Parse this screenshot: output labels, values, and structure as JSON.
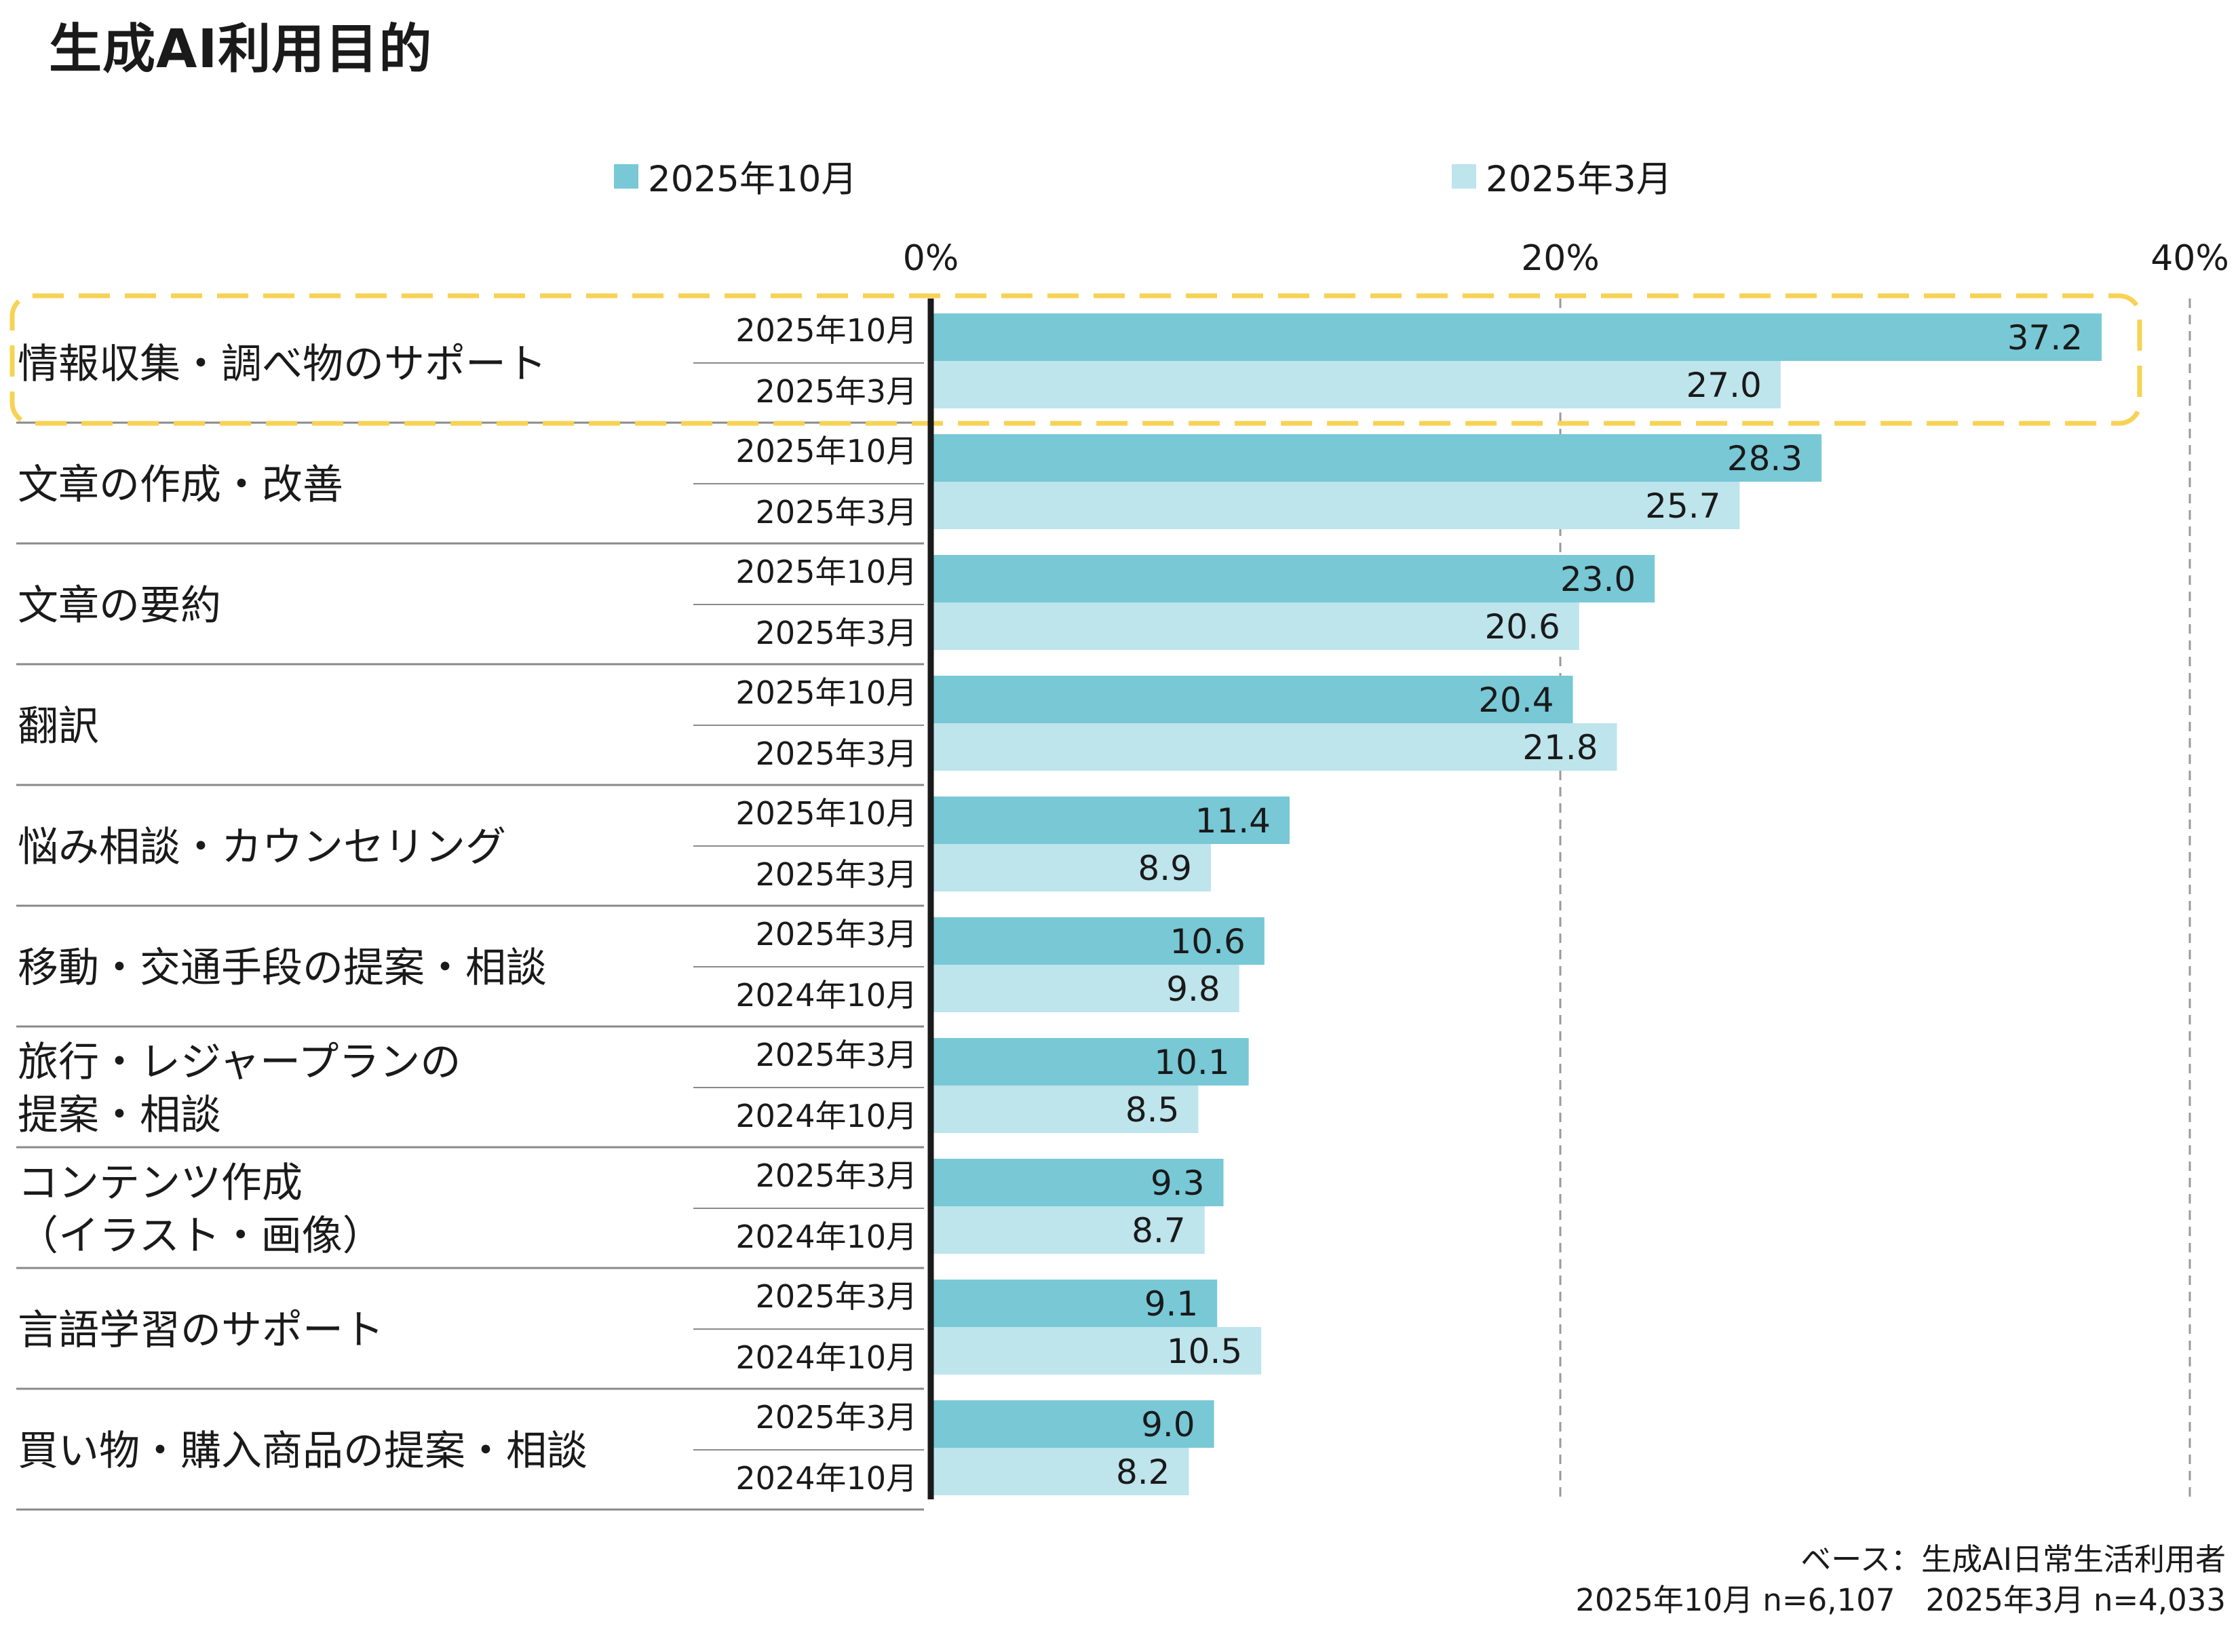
{
  "title": "生成AI利用目的",
  "legend": [
    {
      "label": "2025年10月",
      "color": "#78c8d6"
    },
    {
      "label": "2025年3月",
      "color": "#bee4ec"
    }
  ],
  "chart_data": {
    "type": "bar",
    "orientation": "horizontal",
    "title": "生成AI利用目的",
    "xlim": [
      0,
      40
    ],
    "x_ticks": [
      "0%",
      "20%",
      "40%"
    ],
    "grid": "dashed vertical at 20% and 40%",
    "highlight_category": "情報収集・調べ物のサポート",
    "categories": [
      "情報収集・調べ物のサポート",
      "文章の作成・改善",
      "文章の要約",
      "翻訳",
      "悩み相談・カウンセリング",
      "移動・交通手段の提案・相談",
      "旅行・レジャープランの\n提案・相談",
      "コンテンツ作成\n（イラスト・画像）",
      "言語学習のサポート",
      "買い物・購入商品の提案・相談"
    ],
    "series": [
      {
        "name": "2025年10月",
        "color": "#78c8d6",
        "row_labels": [
          "2025年10月",
          "2025年10月",
          "2025年10月",
          "2025年10月",
          "2025年10月",
          "2025年3月",
          "2025年3月",
          "2025年3月",
          "2025年3月",
          "2025年3月"
        ],
        "values": [
          37.2,
          28.3,
          23.0,
          20.4,
          11.4,
          10.6,
          10.1,
          9.3,
          9.1,
          9.0
        ],
        "value_labels": [
          "37.2",
          "28.3",
          "23.0",
          "20.4",
          "11.4",
          "10.6",
          "10.1",
          "9.3",
          "9.1",
          "9.0"
        ]
      },
      {
        "name": "2025年3月",
        "color": "#bee4ec",
        "row_labels": [
          "2025年3月",
          "2025年3月",
          "2025年3月",
          "2025年3月",
          "2025年3月",
          "2024年10月",
          "2024年10月",
          "2024年10月",
          "2024年10月",
          "2024年10月"
        ],
        "values": [
          27.0,
          25.7,
          20.6,
          21.8,
          8.9,
          9.8,
          8.5,
          8.7,
          10.5,
          8.2
        ],
        "value_labels": [
          "27.0",
          "25.7",
          "20.6",
          "21.8",
          "8.9",
          "9.8",
          "8.5",
          "8.7",
          "10.5",
          "8.2"
        ]
      }
    ]
  },
  "footnote": {
    "line1": "ベース：生成AI日常生活利用者",
    "line2": "2025年10月 n=6,107　2025年3月 n=4,033"
  }
}
